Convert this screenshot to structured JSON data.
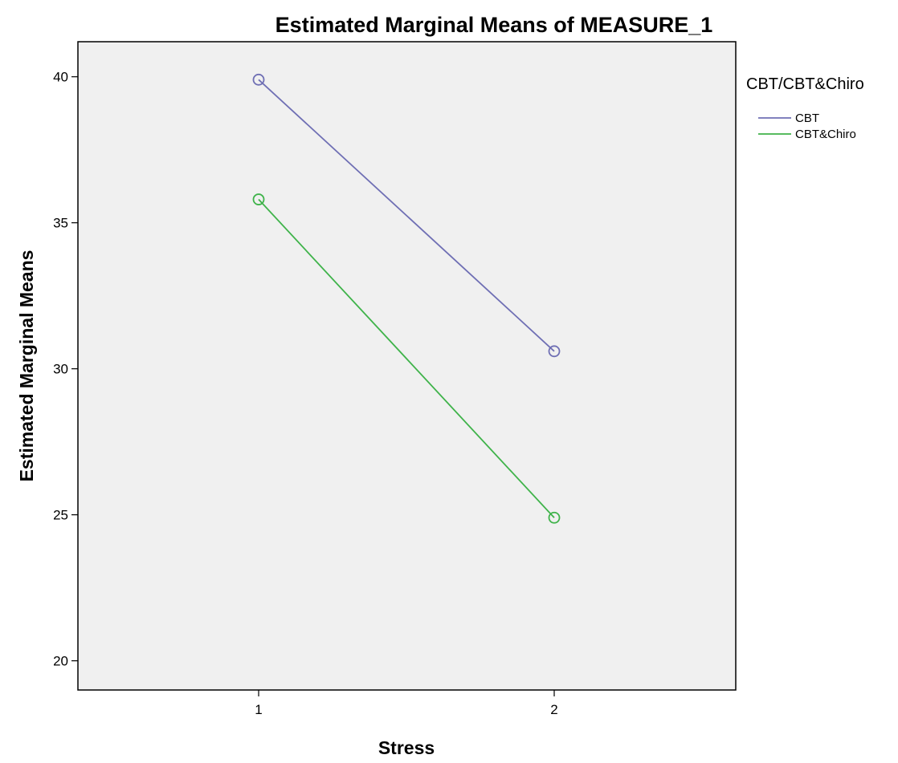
{
  "chart_data": {
    "type": "line",
    "title": "Estimated Marginal Means of MEASURE_1",
    "xlabel": "Stress",
    "ylabel": "Estimated Marginal Means",
    "categories": [
      "1",
      "2"
    ],
    "yticks": [
      "20",
      "25",
      "30",
      "35",
      "40"
    ],
    "ylim": [
      19,
      41.2
    ],
    "grid": false,
    "legend": {
      "title": "CBT/CBT&Chiro",
      "placement": "right"
    },
    "series": [
      {
        "name": "CBT",
        "values": [
          39.9,
          30.6
        ],
        "color": "#6f6fb4"
      },
      {
        "name": "CBT&Chiro",
        "values": [
          35.8,
          24.9
        ],
        "color": "#3fb34a"
      }
    ],
    "plot_background": "#f0f0f0"
  }
}
